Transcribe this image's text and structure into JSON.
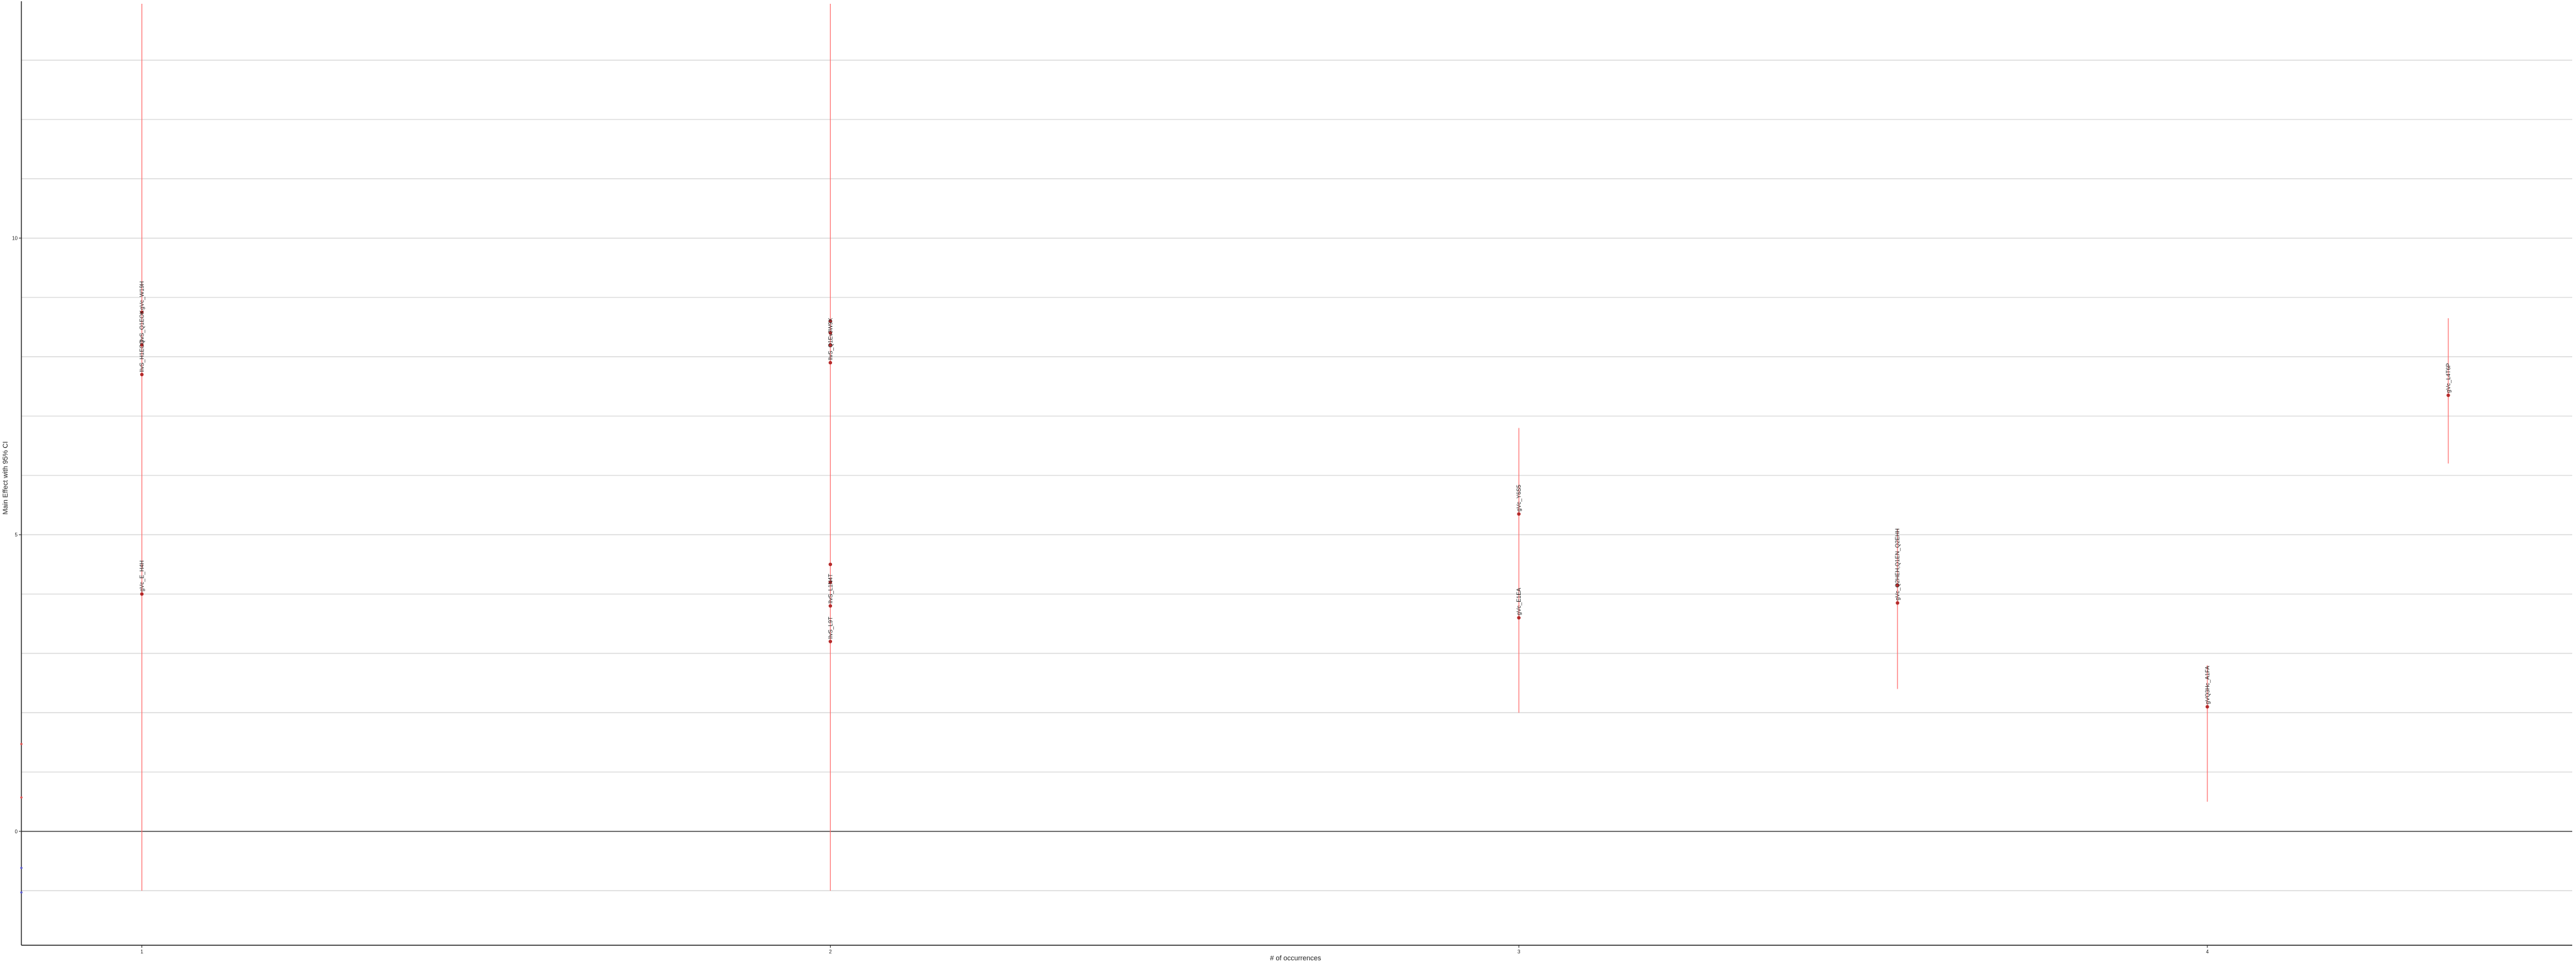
{
  "chart_data": {
    "type": "scatter",
    "title": "",
    "xlabel": "# of occurrences",
    "ylabel": "Main Effect with 95% CI",
    "x_ticks": [
      1,
      2,
      3,
      4
    ],
    "y_ticks": [
      0,
      5,
      10
    ],
    "xlim": [
      0.825,
      4.53
    ],
    "ylim": [
      -1.92,
      13.95
    ],
    "grid": true,
    "colors": {
      "grid": "#d3d3d3",
      "axis": "#222222",
      "ci_line": "#ff6b6b",
      "point": "#b52a2a",
      "edge_point_red": "#e05050",
      "edge_point_blue": "#5a5ad0"
    },
    "points": [
      {
        "label": "gVc_W19H",
        "x": 1,
        "y": 8.75,
        "ci_low": -1.0,
        "ci_high": 16.0
      },
      {
        "label": "lIvS_Q1EOK",
        "x": 1,
        "y": 8.2,
        "ci_low": -1.0,
        "ci_high": 16.0
      },
      {
        "label": "lIvS_H1ECQ",
        "x": 1,
        "y": 7.7,
        "ci_low": -1.0,
        "ci_high": 16.0
      },
      {
        "label": "gVc_E_H4H",
        "x": 1,
        "y": 4.0,
        "ci_low": -1.0,
        "ci_high": 16.0
      },
      {
        "label": "",
        "x": 2,
        "y": 8.6,
        "ci_low": -1.0,
        "ci_high": 15.0
      },
      {
        "label": "",
        "x": 2,
        "y": 8.4,
        "ci_low": -1.0,
        "ci_high": 15.0
      },
      {
        "label": "",
        "x": 2,
        "y": 8.2,
        "ci_low": -1.0,
        "ci_high": 15.0
      },
      {
        "label": "lIvS_Q1Ev3W9X",
        "x": 2,
        "y": 7.9,
        "ci_low": -1.0,
        "ci_high": 15.0
      },
      {
        "label": "",
        "x": 2,
        "y": 4.5,
        "ci_low": -1.0,
        "ci_high": 15.0
      },
      {
        "label": "",
        "x": 2,
        "y": 4.2,
        "ci_low": -1.0,
        "ci_high": 15.0
      },
      {
        "label": "lIvS_L1N4T",
        "x": 2,
        "y": 3.8,
        "ci_low": -1.0,
        "ci_high": 15.0
      },
      {
        "label": "lIvS_L9T",
        "x": 2,
        "y": 3.2,
        "ci_low": -1.0,
        "ci_high": 15.0
      },
      {
        "label": "gVc_Y6S5",
        "x": 3,
        "y": 5.35,
        "ci_low": 2.0,
        "ci_high": 6.8
      },
      {
        "label": "gVc_E1EA",
        "x": 3,
        "y": 3.6,
        "ci_low": 2.0,
        "ci_high": 6.8
      },
      {
        "label": "",
        "x": 3.55,
        "y": 4.15,
        "ci_low": 2.4,
        "ci_high": 5.1
      },
      {
        "label": "gVc_Q2HEH,Q1EN_Q2EHH",
        "x": 3.55,
        "y": 3.85,
        "ci_low": 2.4,
        "ci_high": 5.1
      },
      {
        "label": "gVQ3Hc_A1FA",
        "x": 4,
        "y": 2.1,
        "ci_low": 0.5,
        "ci_high": 2.8
      },
      {
        "label": "gVc_L4T6P",
        "x": 4.35,
        "y": 7.35,
        "ci_low": 6.2,
        "ci_high": 8.65
      }
    ]
  }
}
